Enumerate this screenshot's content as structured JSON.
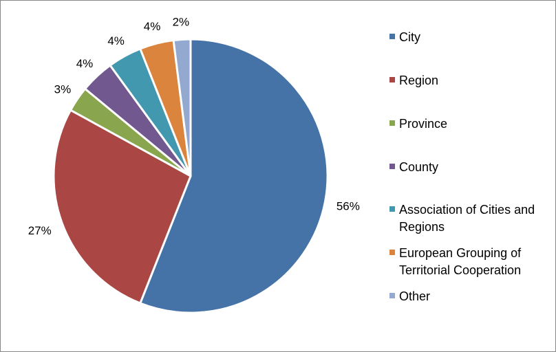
{
  "chart_data": {
    "type": "pie",
    "title": "",
    "legend_position": "right",
    "slices": [
      {
        "name": "City",
        "value": 56,
        "label": "56%",
        "color": "#4572A7"
      },
      {
        "name": "Region",
        "value": 27,
        "label": "27%",
        "color": "#AA4643"
      },
      {
        "name": "Province",
        "value": 3,
        "label": "3%",
        "color": "#89A54E"
      },
      {
        "name": "County",
        "value": 4,
        "label": "4%",
        "color": "#71588F"
      },
      {
        "name": "Association of Cities and Regions",
        "value": 4,
        "label": "4%",
        "color": "#4198AF"
      },
      {
        "name": "European Grouping of Territorial Cooperation",
        "value": 4,
        "label": "4%",
        "color": "#DB843D"
      },
      {
        "name": "Other",
        "value": 2,
        "label": "2%",
        "color": "#93A9CF"
      }
    ]
  }
}
